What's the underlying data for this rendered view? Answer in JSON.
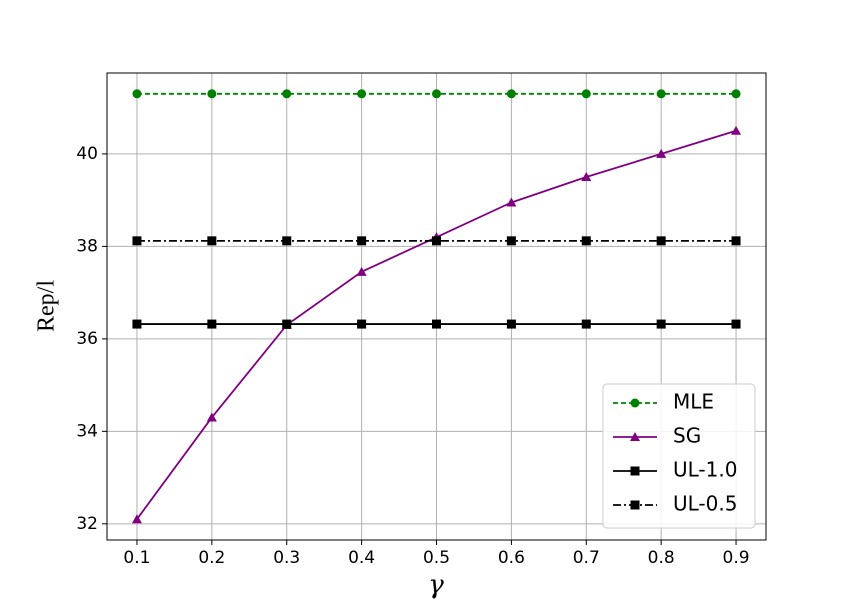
{
  "chart_data": {
    "type": "line",
    "x_label": "γ",
    "y_label": "Rep/l",
    "x": [
      0.1,
      0.2,
      0.3,
      0.4,
      0.5,
      0.6,
      0.7,
      0.8,
      0.9
    ],
    "series": [
      {
        "name": "MLE",
        "color": "#008000",
        "marker": "circle",
        "linestyle": "dashed",
        "values": [
          41.3,
          41.3,
          41.3,
          41.3,
          41.3,
          41.3,
          41.3,
          41.3,
          41.3
        ]
      },
      {
        "name": "SG",
        "color": "#800080",
        "marker": "triangle",
        "linestyle": "solid",
        "values": [
          32.1,
          34.3,
          36.3,
          37.45,
          38.2,
          38.95,
          39.5,
          40.0,
          40.5
        ]
      },
      {
        "name": "UL-1.0",
        "color": "#000000",
        "marker": "square",
        "linestyle": "solid",
        "values": [
          36.32,
          36.32,
          36.32,
          36.32,
          36.32,
          36.32,
          36.32,
          36.32,
          36.32
        ]
      },
      {
        "name": "UL-0.5",
        "color": "#000000",
        "marker": "square",
        "linestyle": "dashdot",
        "values": [
          38.12,
          38.12,
          38.12,
          38.12,
          38.12,
          38.12,
          38.12,
          38.12,
          38.12
        ]
      }
    ],
    "xlim": [
      0.06,
      0.94
    ],
    "ylim": [
      31.65,
      41.75
    ],
    "xticks": [
      0.1,
      0.2,
      0.3,
      0.4,
      0.5,
      0.6,
      0.7,
      0.8,
      0.9
    ],
    "yticks": [
      32,
      34,
      36,
      38,
      40
    ],
    "grid": true,
    "legend": "lower right"
  }
}
